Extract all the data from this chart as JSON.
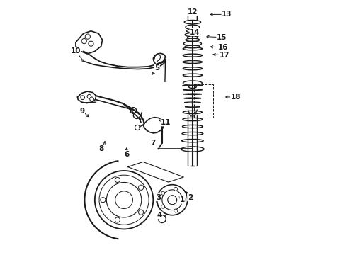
{
  "bg_color": "#ffffff",
  "line_color": "#1a1a1a",
  "figsize": [
    4.9,
    3.6
  ],
  "dpi": 100,
  "label_positions": {
    "12": [
      0.575,
      0.955,
      0.555,
      0.945
    ],
    "13": [
      0.71,
      0.945,
      0.635,
      0.945
    ],
    "14": [
      0.585,
      0.875,
      0.565,
      0.875
    ],
    "15": [
      0.69,
      0.855,
      0.62,
      0.858
    ],
    "16": [
      0.695,
      0.815,
      0.635,
      0.818
    ],
    "17": [
      0.7,
      0.785,
      0.645,
      0.788
    ],
    "18": [
      0.745,
      0.62,
      0.695,
      0.62
    ],
    "10": [
      0.115,
      0.8,
      0.155,
      0.75
    ],
    "5": [
      0.435,
      0.735,
      0.41,
      0.7
    ],
    "9": [
      0.14,
      0.565,
      0.175,
      0.535
    ],
    "8": [
      0.215,
      0.415,
      0.235,
      0.455
    ],
    "6": [
      0.315,
      0.395,
      0.315,
      0.43
    ],
    "11": [
      0.47,
      0.52,
      0.435,
      0.53
    ],
    "7": [
      0.42,
      0.44,
      0.41,
      0.455
    ],
    "3": [
      0.44,
      0.225,
      0.445,
      0.245
    ],
    "1": [
      0.535,
      0.215,
      0.515,
      0.235
    ],
    "2": [
      0.565,
      0.225,
      0.545,
      0.255
    ],
    "4": [
      0.445,
      0.155,
      0.445,
      0.175
    ]
  }
}
